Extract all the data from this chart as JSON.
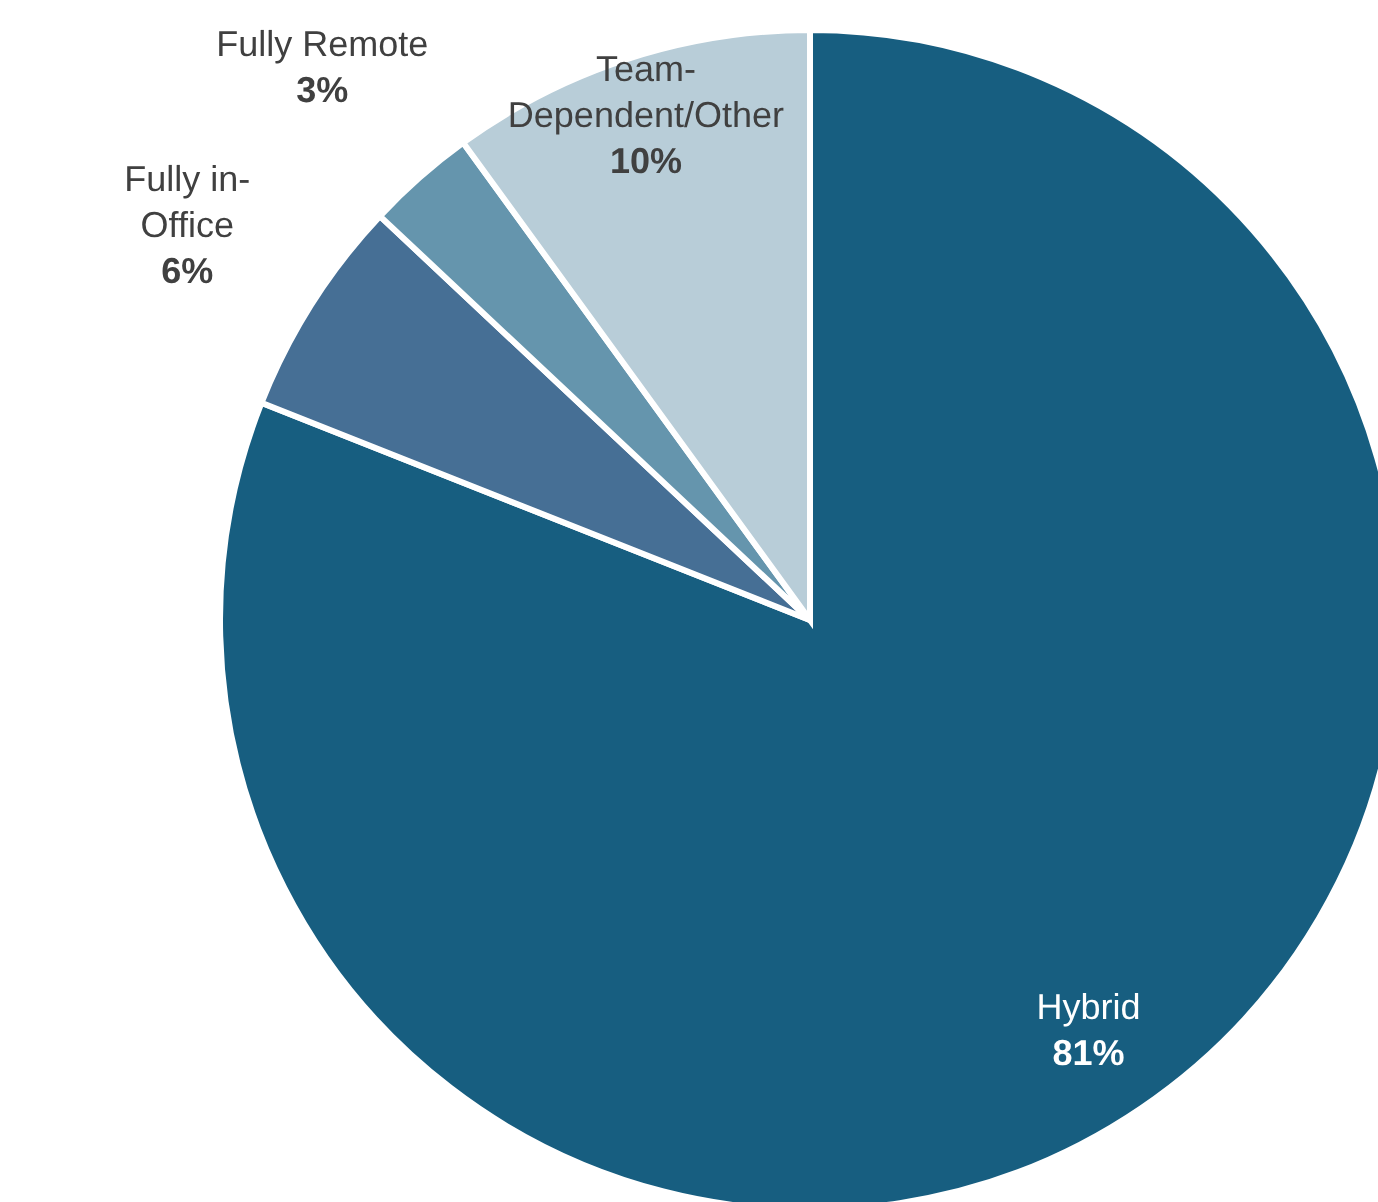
{
  "chart_data": {
    "type": "pie",
    "categories": [
      "Hybrid",
      "Fully in-Office",
      "Fully Remote",
      "Team-Dependent/Other"
    ],
    "values": [
      81,
      6,
      3,
      10
    ],
    "value_labels": [
      "81%",
      "6%",
      "3%",
      "10%"
    ],
    "colors": [
      "#175e80",
      "#466f95",
      "#6595ad",
      "#b8cdd8"
    ],
    "legend": false
  }
}
